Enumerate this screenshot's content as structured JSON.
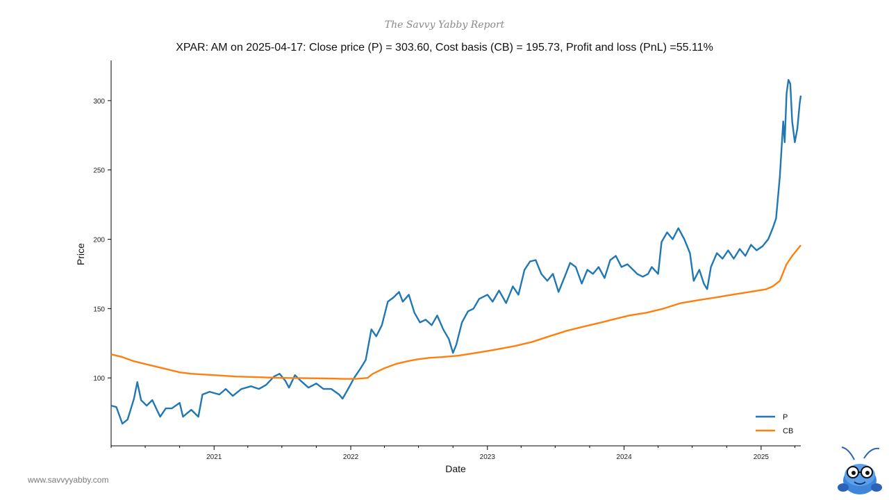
{
  "brand": "The Savvy Yabby Report",
  "website": "www.savvyyabby.com",
  "colors": {
    "P": "#1f77b4",
    "CB": "#ff7f0e"
  },
  "chart_data": {
    "type": "line",
    "title": "XPAR: AM on 2025-04-17: Close price (P) = 303.60, Cost basis (CB) = 195.73, Profit and loss (PnL) =55.11%",
    "xlabel": "Date",
    "ylabel": "Price",
    "xlim": [
      "2020-04-01",
      "2025-04-17"
    ],
    "ylim": [
      51,
      329
    ],
    "x_ticks": [
      "2021",
      "2022",
      "2023",
      "2024",
      "2025"
    ],
    "y_ticks": [
      100,
      150,
      200,
      250,
      300
    ],
    "grid": false,
    "legend": "bottom-right",
    "series": [
      {
        "name": "P",
        "points": [
          [
            "2020-04-01",
            80
          ],
          [
            "2020-04-15",
            79
          ],
          [
            "2020-05-01",
            67
          ],
          [
            "2020-05-15",
            70
          ],
          [
            "2020-06-01",
            85
          ],
          [
            "2020-06-10",
            97
          ],
          [
            "2020-06-20",
            84
          ],
          [
            "2020-07-05",
            80
          ],
          [
            "2020-07-20",
            84
          ],
          [
            "2020-08-10",
            72
          ],
          [
            "2020-08-25",
            78
          ],
          [
            "2020-09-10",
            78
          ],
          [
            "2020-10-01",
            82
          ],
          [
            "2020-10-10",
            72
          ],
          [
            "2020-11-01",
            77
          ],
          [
            "2020-11-20",
            72
          ],
          [
            "2020-12-01",
            88
          ],
          [
            "2020-12-20",
            90
          ],
          [
            "2021-01-15",
            88
          ],
          [
            "2021-02-01",
            92
          ],
          [
            "2021-02-20",
            87
          ],
          [
            "2021-03-15",
            92
          ],
          [
            "2021-04-10",
            94
          ],
          [
            "2021-05-01",
            92
          ],
          [
            "2021-05-20",
            95
          ],
          [
            "2021-06-10",
            101
          ],
          [
            "2021-06-25",
            103
          ],
          [
            "2021-07-10",
            98
          ],
          [
            "2021-07-20",
            93
          ],
          [
            "2021-08-05",
            102
          ],
          [
            "2021-08-20",
            98
          ],
          [
            "2021-09-10",
            93
          ],
          [
            "2021-10-01",
            96
          ],
          [
            "2021-10-20",
            92
          ],
          [
            "2021-11-10",
            92
          ],
          [
            "2021-12-01",
            88
          ],
          [
            "2021-12-10",
            85
          ],
          [
            "2021-12-25",
            92
          ],
          [
            "2022-01-10",
            100
          ],
          [
            "2022-01-25",
            106
          ],
          [
            "2022-02-10",
            113
          ],
          [
            "2022-02-25",
            135
          ],
          [
            "2022-03-10",
            130
          ],
          [
            "2022-03-25",
            138
          ],
          [
            "2022-04-10",
            155
          ],
          [
            "2022-04-25",
            158
          ],
          [
            "2022-05-10",
            162
          ],
          [
            "2022-05-20",
            155
          ],
          [
            "2022-06-05",
            160
          ],
          [
            "2022-06-20",
            147
          ],
          [
            "2022-07-05",
            140
          ],
          [
            "2022-07-20",
            142
          ],
          [
            "2022-08-05",
            138
          ],
          [
            "2022-08-20",
            145
          ],
          [
            "2022-09-05",
            135
          ],
          [
            "2022-09-20",
            128
          ],
          [
            "2022-10-01",
            118
          ],
          [
            "2022-10-10",
            124
          ],
          [
            "2022-10-25",
            140
          ],
          [
            "2022-11-10",
            148
          ],
          [
            "2022-11-25",
            150
          ],
          [
            "2022-12-10",
            157
          ],
          [
            "2023-01-01",
            160
          ],
          [
            "2023-01-15",
            155
          ],
          [
            "2023-02-01",
            163
          ],
          [
            "2023-02-20",
            154
          ],
          [
            "2023-03-10",
            166
          ],
          [
            "2023-03-25",
            160
          ],
          [
            "2023-04-10",
            178
          ],
          [
            "2023-04-25",
            184
          ],
          [
            "2023-05-10",
            185
          ],
          [
            "2023-05-25",
            175
          ],
          [
            "2023-06-10",
            170
          ],
          [
            "2023-06-25",
            175
          ],
          [
            "2023-07-10",
            162
          ],
          [
            "2023-07-25",
            172
          ],
          [
            "2023-08-10",
            183
          ],
          [
            "2023-08-25",
            180
          ],
          [
            "2023-09-10",
            168
          ],
          [
            "2023-09-25",
            178
          ],
          [
            "2023-10-10",
            175
          ],
          [
            "2023-10-25",
            180
          ],
          [
            "2023-11-10",
            172
          ],
          [
            "2023-11-25",
            185
          ],
          [
            "2023-12-10",
            188
          ],
          [
            "2023-12-25",
            180
          ],
          [
            "2024-01-10",
            182
          ],
          [
            "2024-01-25",
            178
          ],
          [
            "2024-02-05",
            175
          ],
          [
            "2024-02-20",
            173
          ],
          [
            "2024-03-05",
            175
          ],
          [
            "2024-03-15",
            180
          ],
          [
            "2024-04-01",
            175
          ],
          [
            "2024-04-10",
            198
          ],
          [
            "2024-04-25",
            205
          ],
          [
            "2024-05-10",
            200
          ],
          [
            "2024-05-25",
            208
          ],
          [
            "2024-06-10",
            200
          ],
          [
            "2024-06-25",
            190
          ],
          [
            "2024-07-05",
            170
          ],
          [
            "2024-07-20",
            178
          ],
          [
            "2024-08-01",
            168
          ],
          [
            "2024-08-10",
            164
          ],
          [
            "2024-08-20",
            180
          ],
          [
            "2024-09-05",
            190
          ],
          [
            "2024-09-20",
            186
          ],
          [
            "2024-10-05",
            192
          ],
          [
            "2024-10-20",
            186
          ],
          [
            "2024-11-05",
            193
          ],
          [
            "2024-11-20",
            188
          ],
          [
            "2024-12-05",
            196
          ],
          [
            "2024-12-20",
            192
          ],
          [
            "2025-01-05",
            195
          ],
          [
            "2025-01-20",
            200
          ],
          [
            "2025-02-01",
            208
          ],
          [
            "2025-02-10",
            215
          ],
          [
            "2025-02-20",
            245
          ],
          [
            "2025-03-01",
            285
          ],
          [
            "2025-03-05",
            270
          ],
          [
            "2025-03-10",
            305
          ],
          [
            "2025-03-15",
            315
          ],
          [
            "2025-03-20",
            312
          ],
          [
            "2025-03-25",
            285
          ],
          [
            "2025-04-01",
            270
          ],
          [
            "2025-04-08",
            280
          ],
          [
            "2025-04-14",
            298
          ],
          [
            "2025-04-17",
            303.6
          ]
        ]
      },
      {
        "name": "CB",
        "points": [
          [
            "2020-04-01",
            117
          ],
          [
            "2020-05-01",
            115
          ],
          [
            "2020-06-01",
            112
          ],
          [
            "2020-07-01",
            110
          ],
          [
            "2020-08-01",
            108
          ],
          [
            "2020-09-01",
            106
          ],
          [
            "2020-10-01",
            104
          ],
          [
            "2020-11-01",
            103
          ],
          [
            "2020-12-01",
            102.5
          ],
          [
            "2021-01-01",
            102
          ],
          [
            "2021-03-01",
            101
          ],
          [
            "2021-05-01",
            100.5
          ],
          [
            "2021-07-01",
            100
          ],
          [
            "2021-09-01",
            99.8
          ],
          [
            "2021-11-01",
            99.6
          ],
          [
            "2021-12-15",
            99.3
          ],
          [
            "2022-01-15",
            99.3
          ],
          [
            "2022-02-15",
            100
          ],
          [
            "2022-03-01",
            103
          ],
          [
            "2022-04-01",
            107
          ],
          [
            "2022-05-01",
            110
          ],
          [
            "2022-06-01",
            112
          ],
          [
            "2022-07-01",
            113.5
          ],
          [
            "2022-08-01",
            114.5
          ],
          [
            "2022-09-01",
            115
          ],
          [
            "2022-10-15",
            116
          ],
          [
            "2022-12-01",
            118
          ],
          [
            "2023-01-15",
            120
          ],
          [
            "2023-03-15",
            123
          ],
          [
            "2023-05-01",
            126
          ],
          [
            "2023-06-15",
            130
          ],
          [
            "2023-08-01",
            134
          ],
          [
            "2023-09-15",
            137
          ],
          [
            "2023-11-01",
            140
          ],
          [
            "2023-12-15",
            143
          ],
          [
            "2024-01-15",
            145
          ],
          [
            "2024-03-01",
            147
          ],
          [
            "2024-04-15",
            150
          ],
          [
            "2024-06-01",
            154
          ],
          [
            "2024-07-15",
            156
          ],
          [
            "2024-09-01",
            158
          ],
          [
            "2024-10-15",
            160
          ],
          [
            "2024-12-01",
            162
          ],
          [
            "2025-01-15",
            164
          ],
          [
            "2025-02-01",
            166
          ],
          [
            "2025-02-20",
            170
          ],
          [
            "2025-03-10",
            182
          ],
          [
            "2025-03-25",
            188
          ],
          [
            "2025-04-17",
            195.73
          ]
        ]
      }
    ]
  }
}
